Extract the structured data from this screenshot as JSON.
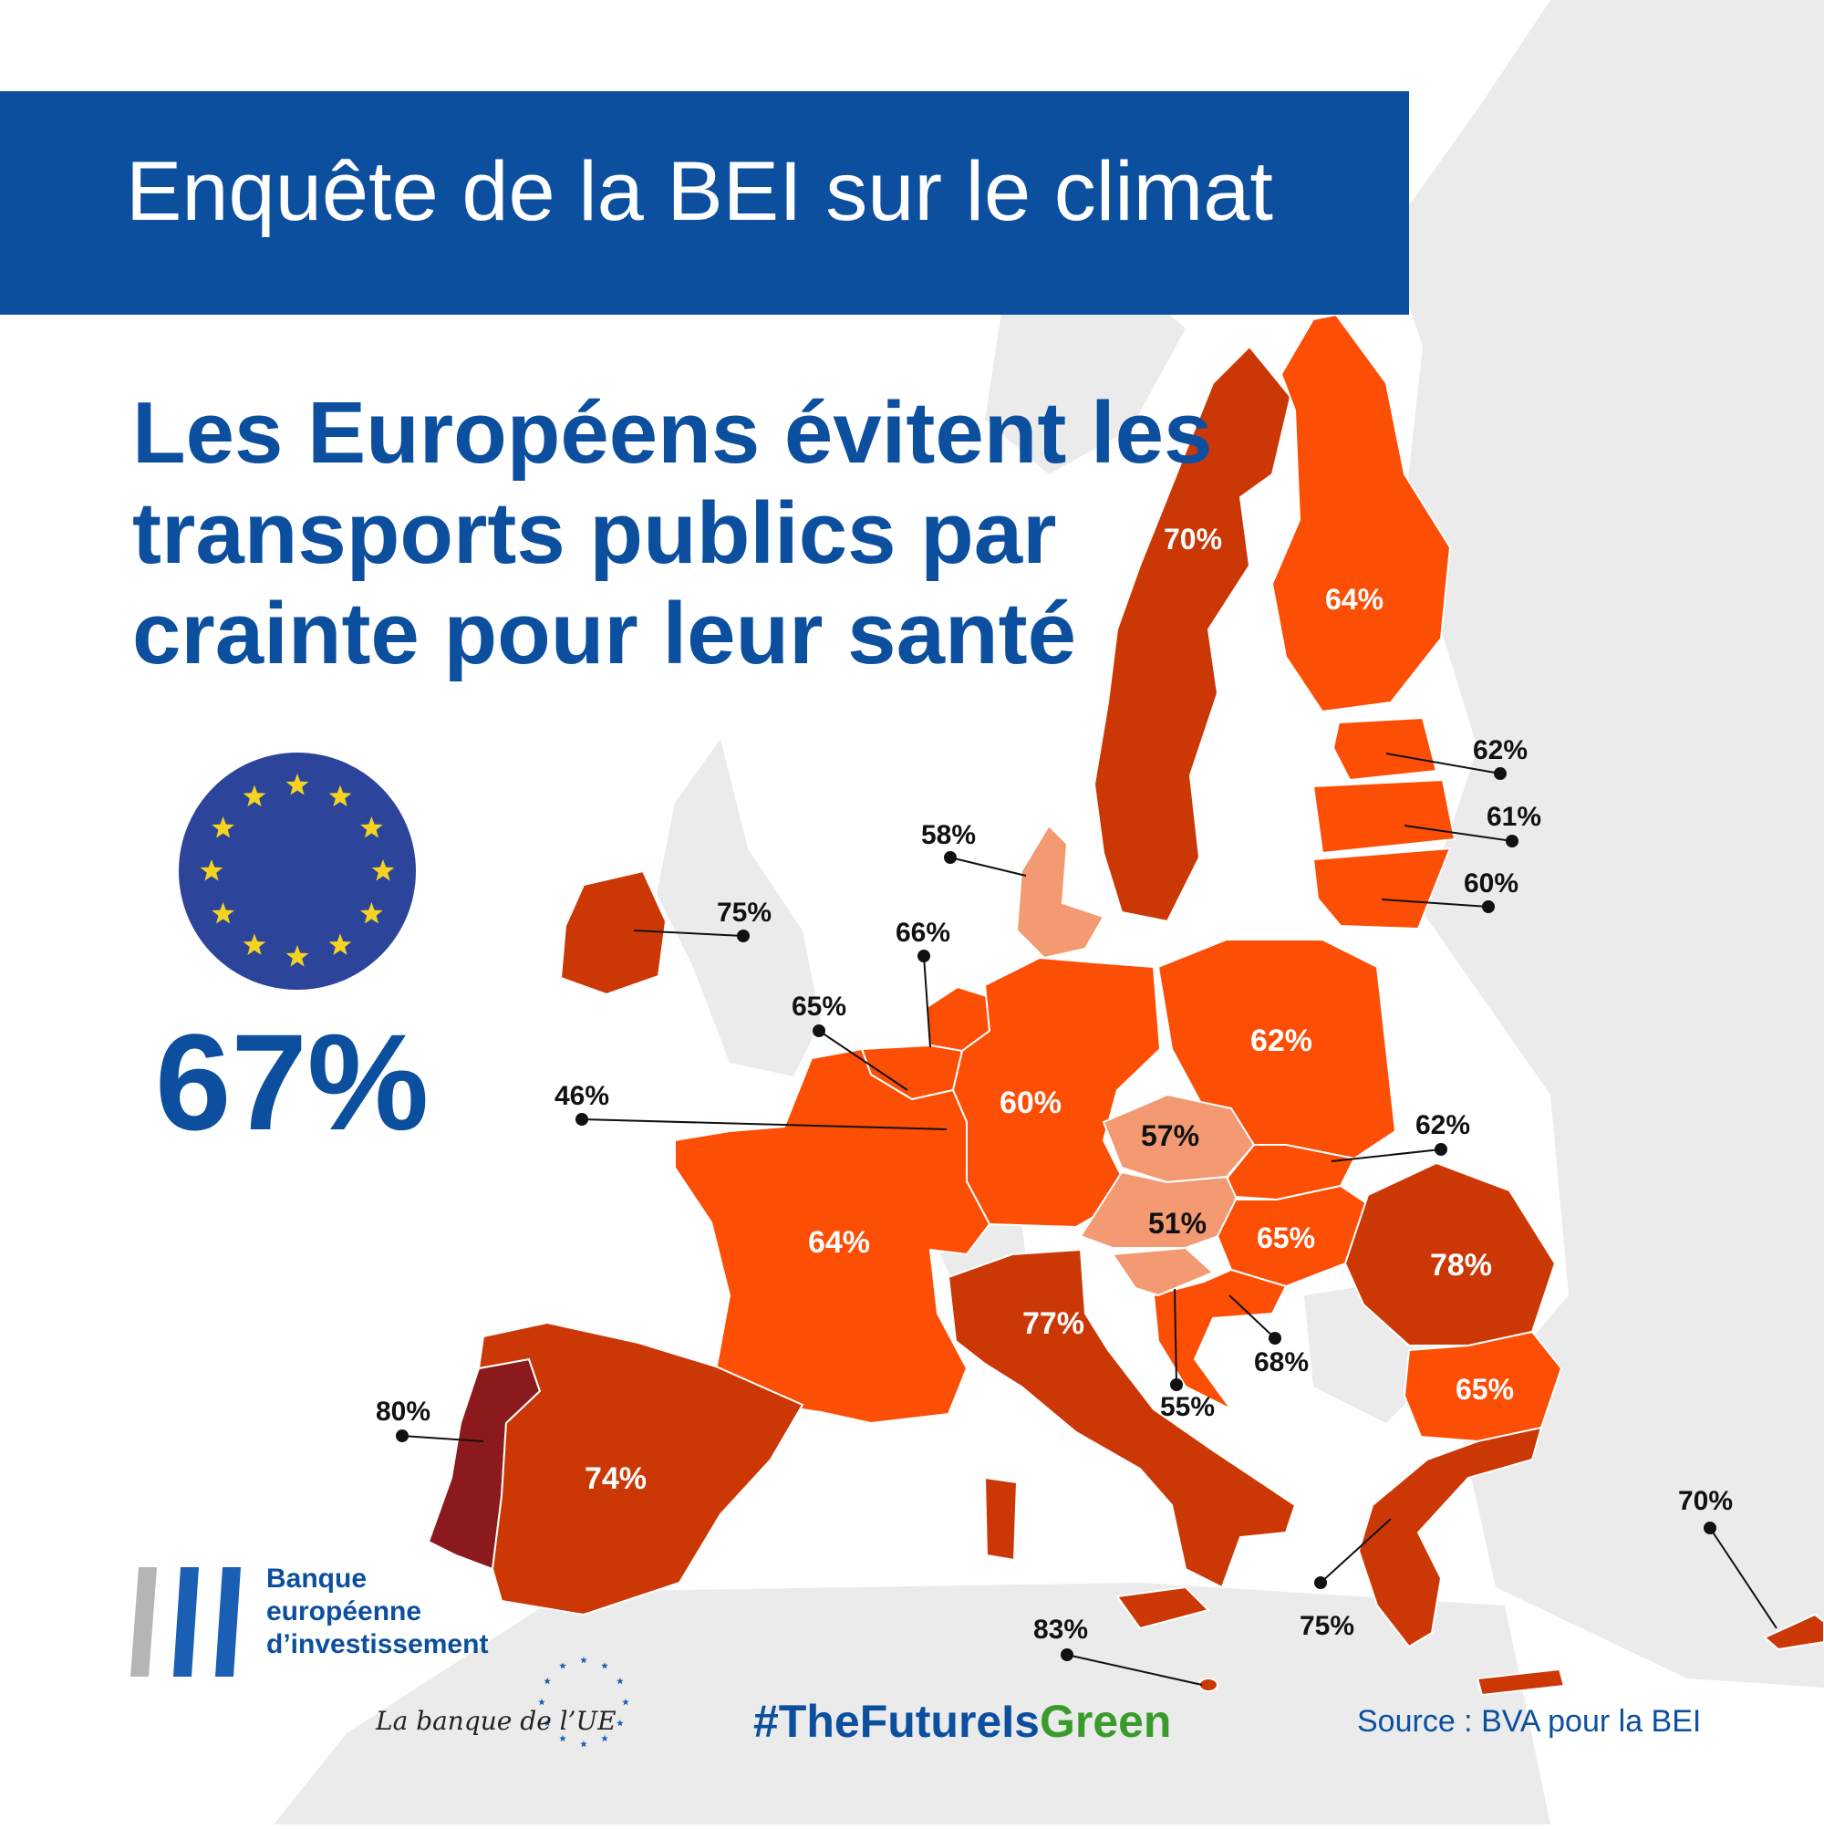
{
  "title": "Enquête de la BEI sur le climat",
  "subtitle_lines": [
    "Les Européens évitent les",
    "transports publics par",
    "crainte pour leur santé"
  ],
  "eu_average": "67%",
  "colors": {
    "banner": "#0b4f9e",
    "text_blue": "#0b4f9e",
    "hashtag_green": "#3a9b2c",
    "background_land": "#ebebeb",
    "shade_lowest": "#f39a72",
    "shade_mid": "#fc4e05",
    "shade_high": "#cc3805",
    "shade_highest": "#8c1a1c",
    "eu_flag_blue": "#2c449a",
    "eu_star": "#f5d321"
  },
  "icons": [
    "eu-flag-icon",
    "eib-logo-icon"
  ],
  "eib": {
    "name_lines": [
      "Banque",
      "européenne",
      "d’investissement"
    ],
    "tagline": "La banque de l’UE"
  },
  "hashtag": {
    "part1": "#TheFutureIs",
    "part2": "Green"
  },
  "source": "Source : BVA pour la BEI",
  "countries": [
    {
      "value": "70%",
      "shade": "shade_high"
    },
    {
      "value": "64%",
      "shade": "shade_mid"
    },
    {
      "value": "62%",
      "shade": "shade_mid"
    },
    {
      "value": "61%",
      "shade": "shade_mid"
    },
    {
      "value": "60%",
      "shade": "shade_mid"
    },
    {
      "value": "58%",
      "shade": "shade_lowest"
    },
    {
      "value": "75%",
      "shade": "shade_high"
    },
    {
      "value": "66%",
      "shade": "shade_mid"
    },
    {
      "value": "65%",
      "shade": "shade_mid"
    },
    {
      "value": "46%",
      "shade": "shade_lowest"
    },
    {
      "value": "60%",
      "shade": "shade_mid"
    },
    {
      "value": "62%",
      "shade": "shade_mid"
    },
    {
      "value": "57%",
      "shade": "shade_lowest"
    },
    {
      "value": "62%",
      "shade": "shade_mid"
    },
    {
      "value": "51%",
      "shade": "shade_lowest"
    },
    {
      "value": "65%",
      "shade": "shade_mid"
    },
    {
      "value": "78%",
      "shade": "shade_high"
    },
    {
      "value": "64%",
      "shade": "shade_mid"
    },
    {
      "value": "77%",
      "shade": "shade_high"
    },
    {
      "value": "68%",
      "shade": "shade_mid"
    },
    {
      "value": "55%",
      "shade": "shade_lowest"
    },
    {
      "value": "65%",
      "shade": "shade_mid"
    },
    {
      "value": "80%",
      "shade": "shade_highest"
    },
    {
      "value": "74%",
      "shade": "shade_high"
    },
    {
      "value": "75%",
      "shade": "shade_high"
    },
    {
      "value": "83%",
      "shade": "shade_high"
    },
    {
      "value": "70%",
      "shade": "shade_high"
    }
  ]
}
